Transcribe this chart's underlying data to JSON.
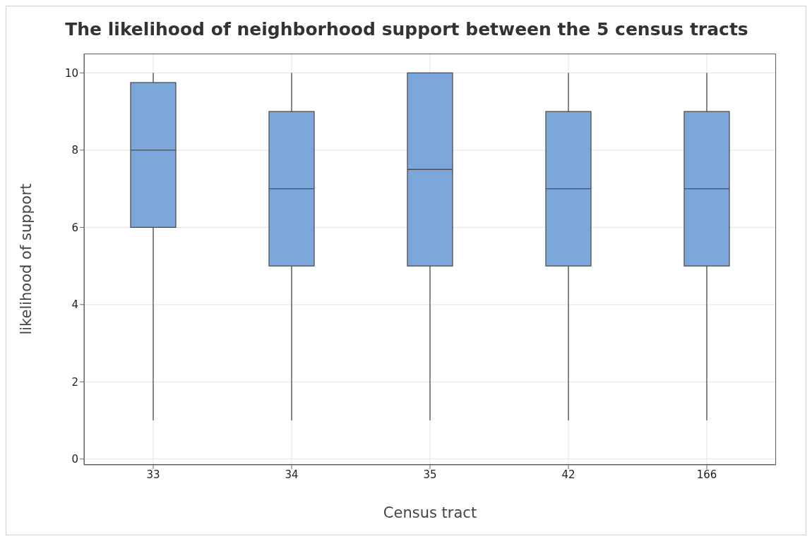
{
  "chart_data": {
    "type": "box",
    "title": "The likelihood of neighborhood support between the 5 census tracts",
    "xlabel": "Census tract",
    "ylabel": "likelihood of support",
    "categories": [
      "33",
      "34",
      "35",
      "42",
      "166"
    ],
    "boxes": [
      {
        "low": 1,
        "q1": 6,
        "median": 8,
        "q3": 9.75,
        "high": 10
      },
      {
        "low": 1,
        "q1": 5,
        "median": 7,
        "q3": 9,
        "high": 10
      },
      {
        "low": 1,
        "q1": 5,
        "median": 7.5,
        "q3": 10,
        "high": 10
      },
      {
        "low": 1,
        "q1": 5,
        "median": 7,
        "q3": 9,
        "high": 10
      },
      {
        "low": 1,
        "q1": 5,
        "median": 7,
        "q3": 9,
        "high": 10
      }
    ],
    "color": "#7ba7da",
    "ylim": [
      -0.15,
      10.5
    ],
    "yticks": [
      0,
      2,
      4,
      6,
      8,
      10
    ],
    "grid": true
  }
}
